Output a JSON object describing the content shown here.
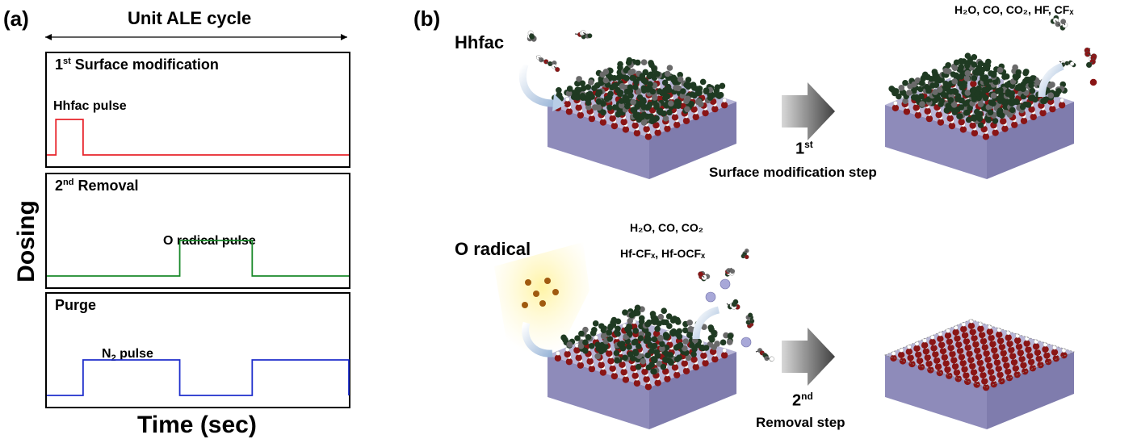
{
  "panel_a": {
    "label": "(a)",
    "cycle_title": "Unit ALE cycle",
    "y_axis": "Dosing",
    "x_axis": "Time (sec)",
    "boxes": [
      {
        "title_main": "1",
        "title_sup": "st",
        "title_rest": " Surface modification",
        "pulse_label": "Hhfac pulse",
        "line_color": "#e8242b",
        "pulses": [
          [
            0.03,
            0.12
          ]
        ]
      },
      {
        "title_main": "2",
        "title_sup": "nd",
        "title_rest": " Removal",
        "pulse_label": "O radical pulse",
        "line_color": "#1a8a2a",
        "pulses": [
          [
            0.44,
            0.68
          ]
        ]
      },
      {
        "title_main": "Purge",
        "title_sup": "",
        "title_rest": "",
        "pulse_label_main": "N",
        "pulse_label_sub": "2",
        "pulse_label_rest": " pulse",
        "line_color": "#1f2fcc",
        "pulses": [
          [
            0.12,
            0.44
          ],
          [
            0.68,
            1.0
          ]
        ]
      }
    ]
  },
  "panel_b": {
    "label": "(b)",
    "hhfac_label": "Hhfac",
    "o_radical_label": "O radical",
    "products_top": "H₂O, CO, CO₂, HF, CFₓ",
    "products_mid_1": "H₂O, CO, CO₂",
    "products_mid_2": "Hf-CFₓ, Hf-OCFₓ",
    "step1_num": "1",
    "step1_sup": "st",
    "step1_text": "Surface modification step",
    "step2_num": "2",
    "step2_sup": "nd",
    "step2_text": "Removal step"
  },
  "colors": {
    "slab_top": "#b7b5d6",
    "slab_side": "#8e8bba",
    "oxygen": "#8a1515",
    "hydrogen": "#ffffff",
    "carbon": "#6a6a6a",
    "fluorine": "#1f3a22",
    "hafnium": "#a8a8d8",
    "radical": "#a05a10"
  }
}
